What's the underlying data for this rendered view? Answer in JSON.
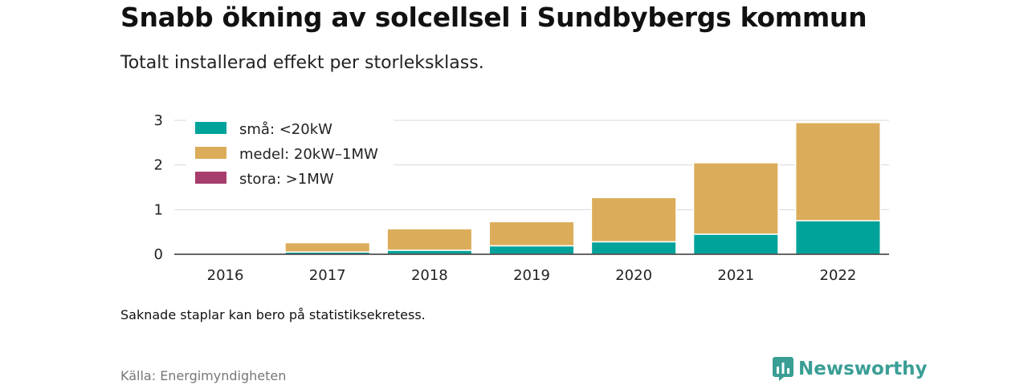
{
  "title": "Snabb ökning av solcellsel i Sundbybergs kommun",
  "subtitle": "Totalt installerad effekt per storleksklass.",
  "note": "Saknade staplar kan bero på statistiksekretess.",
  "source": "Källa: Energimyndigheten",
  "brand": {
    "name": "Newsworthy",
    "color": "#3a9e95"
  },
  "chart_data": {
    "type": "bar",
    "stacked": true,
    "categories": [
      "2016",
      "2017",
      "2018",
      "2019",
      "2020",
      "2021",
      "2022"
    ],
    "ylim": [
      0,
      3
    ],
    "yticks": [
      "0",
      "1",
      "2",
      "3"
    ],
    "xlabel": "",
    "ylabel": "",
    "grid": true,
    "legend": "top-left",
    "series": [
      {
        "name": "små: <20kW",
        "color": "#00a39a",
        "values": [
          0.01,
          0.05,
          0.09,
          0.19,
          0.28,
          0.45,
          0.75
        ]
      },
      {
        "name": "medel: 20kW–1MW",
        "color": "#dbad5a",
        "values": [
          0,
          0.21,
          0.48,
          0.54,
          0.99,
          1.6,
          2.2
        ]
      },
      {
        "name": "stora: >1MW",
        "color": "#a63d6b",
        "values": [
          0,
          0,
          0,
          0,
          0,
          0,
          0
        ]
      }
    ]
  }
}
